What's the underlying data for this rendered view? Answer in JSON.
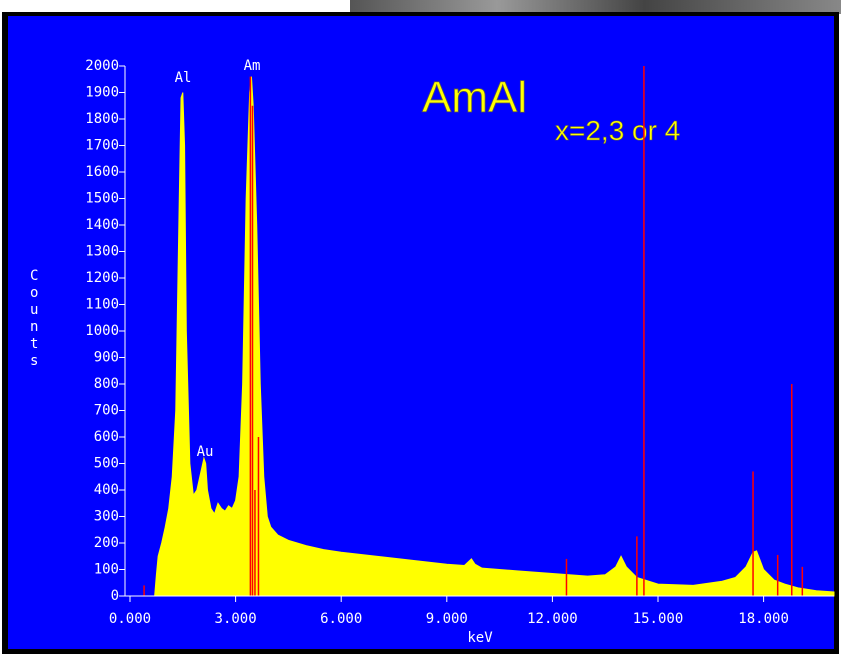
{
  "chart_data": {
    "type": "area",
    "title": {
      "main": "AmAl",
      "sub": "x=2,3 or 4"
    },
    "x_label": "keV",
    "y_label": "Counts",
    "annotations": [
      "Al",
      "Au",
      "Am"
    ],
    "color": "#ffff00",
    "x": [
      0.7,
      0.75,
      0.8,
      0.9,
      1.0,
      1.1,
      1.2,
      1.3,
      1.4,
      1.45,
      1.5,
      1.55,
      1.6,
      1.7,
      1.8,
      1.9,
      2.0,
      2.1,
      2.15,
      2.2,
      2.3,
      2.4,
      2.5,
      2.6,
      2.7,
      2.8,
      2.9,
      3.0,
      3.1,
      3.2,
      3.3,
      3.4,
      3.45,
      3.5,
      3.6,
      3.7,
      3.8,
      3.9,
      4.0,
      4.2,
      4.5,
      5.0,
      5.5,
      6.0,
      7.0,
      8.0,
      9.0,
      9.5,
      9.7,
      9.8,
      10.0,
      11.0,
      12.0,
      13.0,
      13.5,
      13.8,
      13.95,
      14.1,
      14.4,
      15.0,
      16.0,
      16.8,
      17.2,
      17.5,
      17.7,
      17.8,
      18.0,
      18.3,
      18.6,
      19.0,
      19.5,
      20.0
    ],
    "values": [
      0,
      80,
      150,
      200,
      260,
      330,
      450,
      700,
      1500,
      1880,
      1900,
      1700,
      1000,
      500,
      380,
      400,
      460,
      520,
      500,
      400,
      330,
      310,
      350,
      330,
      320,
      340,
      330,
      360,
      450,
      800,
      1500,
      1900,
      1960,
      1850,
      1400,
      800,
      450,
      300,
      260,
      230,
      210,
      190,
      175,
      165,
      150,
      135,
      120,
      115,
      140,
      120,
      105,
      95,
      85,
      75,
      80,
      110,
      150,
      110,
      70,
      45,
      40,
      55,
      70,
      110,
      165,
      170,
      100,
      60,
      45,
      30,
      20,
      15
    ],
    "markers": {
      "color": "#ff0000",
      "x": [
        0.4,
        3.42,
        3.48,
        3.55,
        3.65,
        12.4,
        14.4,
        14.6,
        17.7,
        18.4,
        18.8,
        19.1
      ],
      "values": [
        40,
        1960,
        1850,
        400,
        600,
        140,
        225,
        2000,
        470,
        155,
        800,
        110
      ]
    },
    "xlim": [
      0,
      20
    ],
    "ylim": [
      0,
      2000
    ],
    "xticks": [
      {
        "value": 0,
        "label": "0.000"
      },
      {
        "value": 3,
        "label": "3.000"
      },
      {
        "value": 6,
        "label": "6.000"
      },
      {
        "value": 9,
        "label": "9.000"
      },
      {
        "value": 12,
        "label": "12.000"
      },
      {
        "value": 15,
        "label": "15.000"
      },
      {
        "value": 18,
        "label": "18.000"
      }
    ],
    "yticks": [
      0,
      100,
      200,
      300,
      400,
      500,
      600,
      700,
      800,
      900,
      1000,
      1100,
      1200,
      1300,
      1400,
      1500,
      1600,
      1700,
      1800,
      1900,
      2000
    ]
  }
}
